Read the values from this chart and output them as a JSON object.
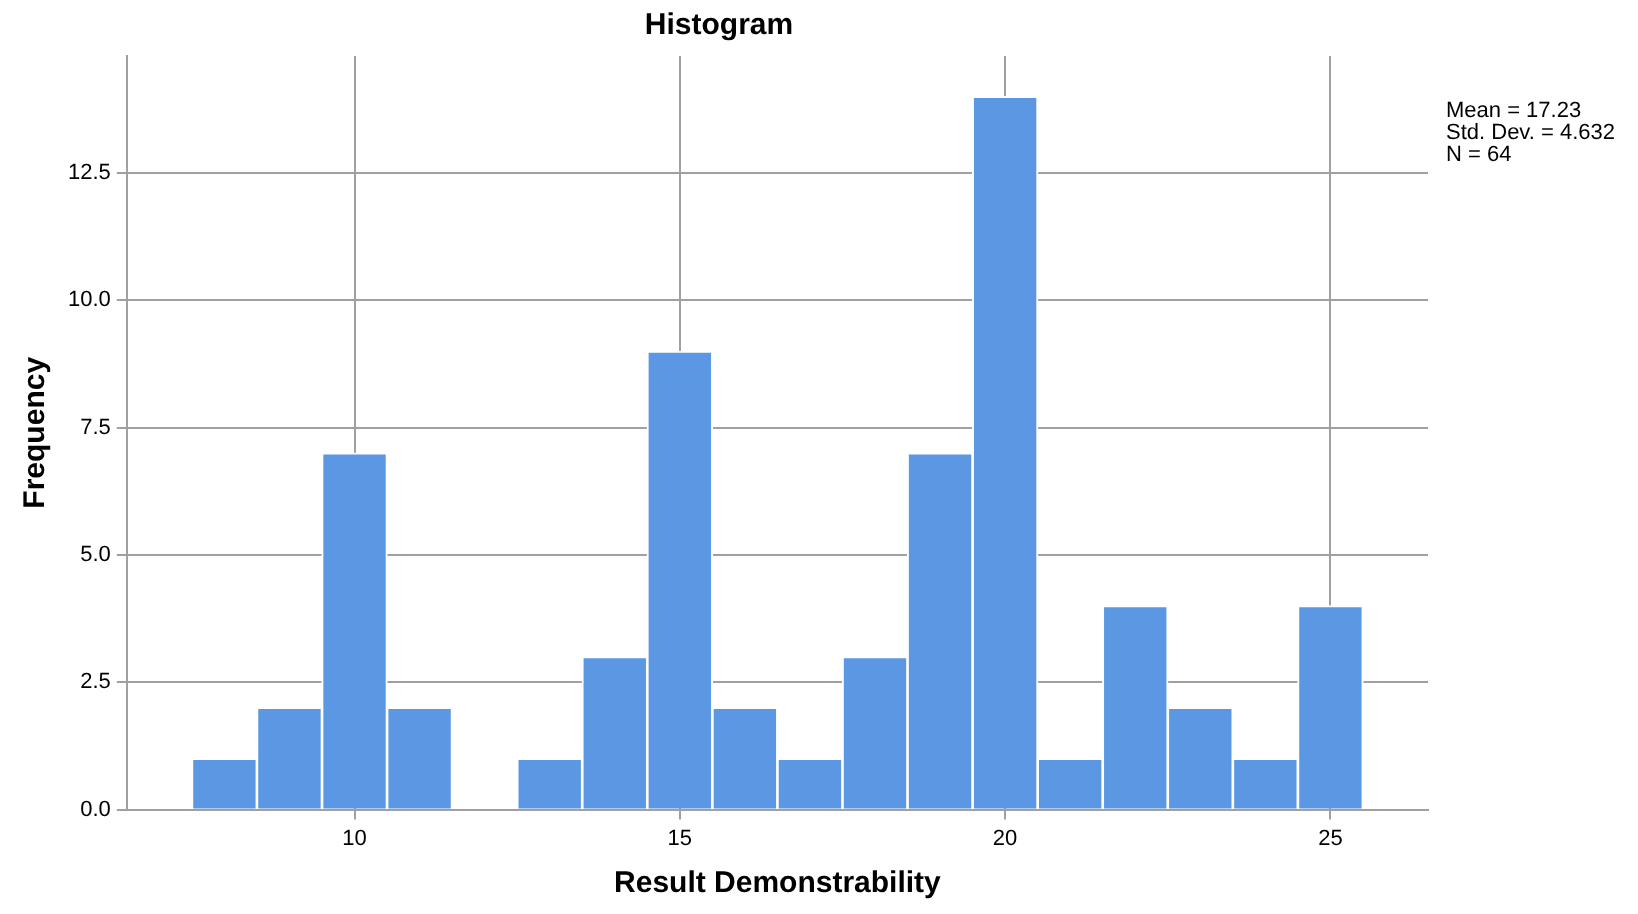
{
  "chart_data": {
    "type": "histogram",
    "title": "Histogram",
    "xlabel": "Result Demonstrability",
    "ylabel": "Frequency",
    "bins": [
      7.5,
      8.5,
      9.5,
      10.5,
      11.5,
      12.5,
      13.5,
      14.5,
      15.5,
      16.5,
      17.5,
      18.5,
      19.5,
      20.5,
      21.5,
      22.5,
      23.5,
      24.5,
      25.5
    ],
    "values": [
      1,
      2,
      7,
      2,
      0,
      1,
      3,
      9,
      2,
      1,
      3,
      7,
      14,
      1,
      4,
      2,
      1,
      4
    ],
    "color": "#5b97e3",
    "xlim": [
      6.5,
      26.5
    ],
    "xticks": [
      10,
      15,
      20,
      25
    ],
    "ylim": [
      0,
      14.8
    ],
    "yticks": [
      {
        "value": 0,
        "label": "0.0"
      },
      2.5,
      {
        "value": 5,
        "label": "5.0"
      },
      7.5,
      {
        "value": 10,
        "label": "10.0"
      },
      12.5
    ],
    "grid": true,
    "legend": false,
    "annotations": [
      "Mean = 17.23",
      "Std. Dev. = 4.632",
      "N = 64"
    ]
  }
}
